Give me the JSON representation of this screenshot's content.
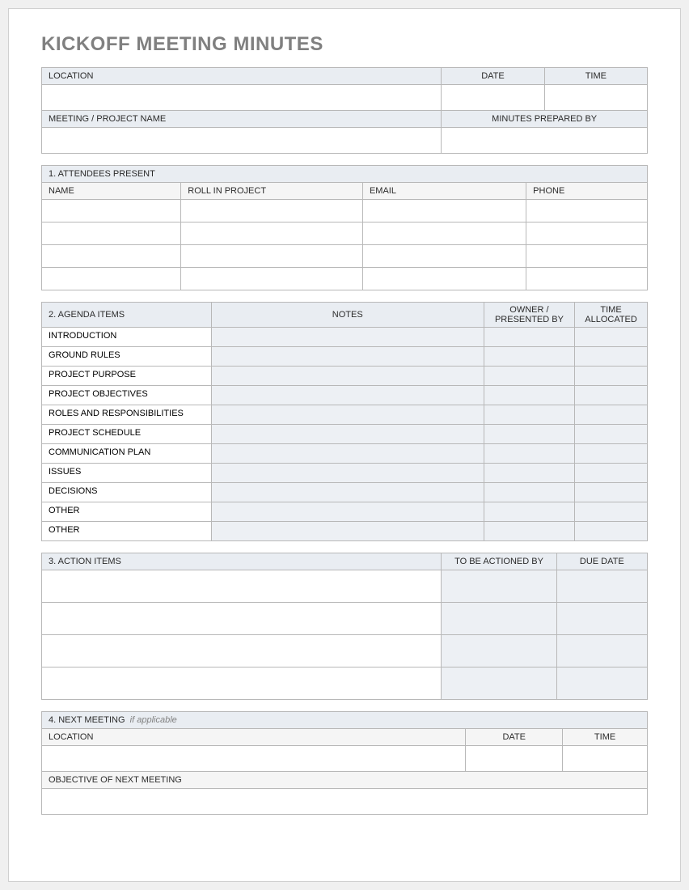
{
  "title": "KICKOFF MEETING MINUTES",
  "info": {
    "location_label": "LOCATION",
    "date_label": "DATE",
    "time_label": "TIME",
    "meeting_name_label": "MEETING / PROJECT NAME",
    "prepared_by_label": "MINUTES PREPARED BY"
  },
  "attendees": {
    "section": "1. ATTENDEES PRESENT",
    "cols": {
      "name": "NAME",
      "role": "ROLL IN PROJECT",
      "email": "EMAIL",
      "phone": "PHONE"
    },
    "row_count": 4
  },
  "agenda": {
    "section": "2. AGENDA ITEMS",
    "cols": {
      "notes": "NOTES",
      "owner1": "OWNER /",
      "owner2": "PRESENTED BY",
      "time1": "TIME",
      "time2": "ALLOCATED"
    },
    "items": [
      "INTRODUCTION",
      "GROUND RULES",
      "PROJECT PURPOSE",
      "PROJECT OBJECTIVES",
      "ROLES AND RESPONSIBILITIES",
      "PROJECT SCHEDULE",
      "COMMUNICATION PLAN",
      "ISSUES",
      "DECISIONS",
      "OTHER",
      "OTHER"
    ]
  },
  "actions": {
    "section": "3. ACTION ITEMS",
    "cols": {
      "by": "TO BE ACTIONED BY",
      "due": "DUE DATE"
    },
    "row_count": 4
  },
  "next": {
    "section": "4. NEXT MEETING",
    "suffix": "if applicable",
    "location_label": "LOCATION",
    "date_label": "DATE",
    "time_label": "TIME",
    "objective_label": "OBJECTIVE OF NEXT MEETING"
  },
  "colors": {
    "title": "#808080",
    "header_bg": "#e9edf2",
    "sub_bg": "#f5f5f5",
    "shade_bg": "#edf0f4",
    "border": "#b8b8b8",
    "page_bg": "#ffffff"
  },
  "widths": {
    "info_location": "66%",
    "info_date": "17%",
    "info_time": "17%",
    "att_name": "23%",
    "att_role": "30%",
    "att_email": "27%",
    "att_phone": "20%",
    "ag_item": "28%",
    "ag_notes": "45%",
    "ag_owner": "15%",
    "ag_time": "12%",
    "act_item": "66%",
    "act_by": "19%",
    "act_due": "15%",
    "next_loc": "70%",
    "next_date": "16%",
    "next_time": "14%"
  }
}
